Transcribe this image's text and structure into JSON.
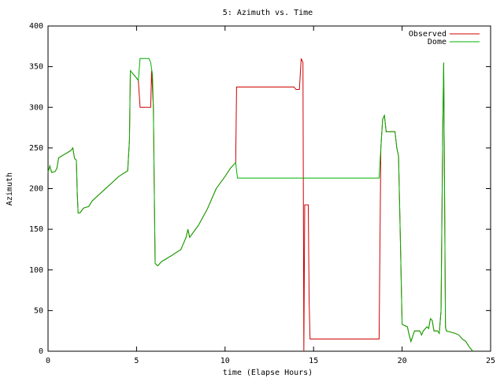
{
  "chart_data": {
    "type": "line",
    "title": "5: Azimuth vs. Time",
    "xlabel": "time (Elapse Hours)",
    "ylabel": "Azimuth",
    "xlim": [
      0,
      25
    ],
    "ylim": [
      0,
      400
    ],
    "xticks": [
      0,
      5,
      10,
      15,
      20,
      25
    ],
    "yticks": [
      0,
      50,
      100,
      150,
      200,
      250,
      300,
      350,
      400
    ],
    "legend": "top-right",
    "series": [
      {
        "name": "Observed",
        "color": "#d00000",
        "x": [
          0,
          0.1,
          0.2,
          0.4,
          0.5,
          0.6,
          1.0,
          1.3,
          1.4,
          1.5,
          1.6,
          1.65,
          1.7,
          1.8,
          2.0,
          2.3,
          2.5,
          3.0,
          3.5,
          4.0,
          4.5,
          4.6,
          4.65,
          5.0,
          5.1,
          5.2,
          5.8,
          5.85,
          5.95,
          6.0,
          6.05,
          6.2,
          6.4,
          7.0,
          7.5,
          7.7,
          7.8,
          7.9,
          8.0,
          8.5,
          9.0,
          9.5,
          10.0,
          10.3,
          10.6,
          10.65,
          13.9,
          14.0,
          14.2,
          14.3,
          14.4,
          14.45,
          14.5,
          14.7,
          14.75,
          14.8,
          18.7,
          18.8,
          18.9,
          19.0,
          19.1,
          19.6,
          19.7,
          19.8,
          19.9,
          20.0,
          20.3,
          20.4,
          20.5,
          20.7,
          21.0,
          21.1,
          21.2,
          21.4,
          21.5,
          21.6,
          21.7,
          21.8,
          22.0,
          22.1,
          22.2,
          22.3,
          22.35,
          22.45,
          22.5,
          23.0,
          23.2,
          23.4,
          23.6,
          23.8,
          24.0
        ],
        "values": [
          220,
          228,
          220,
          221,
          225,
          238,
          243,
          247,
          250,
          237,
          235,
          195,
          170,
          170,
          176,
          178,
          185,
          195,
          205,
          215,
          222,
          260,
          345,
          336,
          333,
          300,
          300,
          345,
          300,
          200,
          108,
          105,
          110,
          118,
          125,
          135,
          140,
          150,
          140,
          155,
          175,
          200,
          215,
          225,
          232,
          325,
          325,
          322,
          322,
          360,
          355,
          0,
          180,
          180,
          60,
          15,
          15,
          250,
          285,
          290,
          270,
          270,
          250,
          240,
          140,
          33,
          30,
          20,
          12,
          25,
          25,
          20,
          25,
          30,
          28,
          40,
          38,
          25,
          25,
          22,
          50,
          280,
          355,
          30,
          25,
          22,
          20,
          15,
          12,
          5,
          0
        ]
      },
      {
        "name": "Dome",
        "color": "#00b000",
        "x": [
          0,
          0.1,
          0.2,
          0.4,
          0.5,
          0.6,
          1.0,
          1.3,
          1.4,
          1.5,
          1.6,
          1.65,
          1.7,
          1.8,
          2.0,
          2.3,
          2.5,
          3.0,
          3.5,
          4.0,
          4.5,
          4.6,
          4.65,
          5.0,
          5.1,
          5.2,
          5.7,
          5.8,
          5.9,
          5.95,
          6.0,
          6.05,
          6.2,
          6.4,
          7.0,
          7.5,
          7.7,
          7.8,
          7.9,
          8.0,
          8.5,
          9.0,
          9.5,
          10.0,
          10.3,
          10.6,
          10.7,
          18.7,
          18.8,
          18.9,
          19.0,
          19.1,
          19.6,
          19.7,
          19.8,
          19.9,
          20.0,
          20.3,
          20.4,
          20.5,
          20.7,
          21.0,
          21.1,
          21.2,
          21.4,
          21.5,
          21.6,
          21.7,
          21.8,
          22.0,
          22.1,
          22.2,
          22.3,
          22.35,
          22.45,
          22.5,
          23.0,
          23.2,
          23.4,
          23.6,
          23.8,
          24.0
        ],
        "values": [
          220,
          228,
          220,
          221,
          225,
          238,
          243,
          247,
          250,
          237,
          235,
          195,
          170,
          170,
          176,
          178,
          185,
          195,
          205,
          215,
          222,
          260,
          345,
          336,
          333,
          360,
          360,
          355,
          340,
          300,
          200,
          108,
          105,
          110,
          118,
          125,
          135,
          140,
          150,
          140,
          155,
          175,
          200,
          215,
          225,
          232,
          213,
          213,
          250,
          285,
          290,
          270,
          270,
          250,
          240,
          140,
          33,
          30,
          20,
          12,
          25,
          25,
          20,
          25,
          30,
          28,
          40,
          38,
          25,
          25,
          22,
          50,
          280,
          355,
          30,
          25,
          22,
          20,
          15,
          12,
          5,
          0
        ]
      }
    ]
  }
}
